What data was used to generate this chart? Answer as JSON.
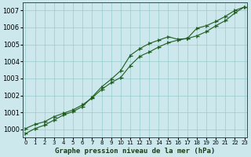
{
  "title": "Graphe pression niveau de la mer (hPa)",
  "background_color": "#cce8ec",
  "plot_bg_color": "#cce8ec",
  "grid_color": "#99cccc",
  "line_color": "#1e5c1e",
  "xlim": [
    -0.3,
    23.3
  ],
  "ylim": [
    999.55,
    1007.45
  ],
  "yticks": [
    1000,
    1001,
    1002,
    1003,
    1004,
    1005,
    1006,
    1007
  ],
  "xticks": [
    0,
    1,
    2,
    3,
    4,
    5,
    6,
    7,
    8,
    9,
    10,
    11,
    12,
    13,
    14,
    15,
    16,
    17,
    18,
    19,
    20,
    21,
    22,
    23
  ],
  "line1_x": [
    0,
    1,
    2,
    3,
    4,
    5,
    6,
    7,
    8,
    9,
    10,
    11,
    12,
    13,
    14,
    15,
    16,
    17,
    18,
    19,
    20,
    21,
    22,
    23
  ],
  "line1_y": [
    1000.05,
    1000.3,
    1000.45,
    1000.75,
    1000.95,
    1001.15,
    1001.45,
    1001.85,
    1002.35,
    1002.75,
    1003.05,
    1003.75,
    1004.3,
    1004.55,
    1004.85,
    1005.1,
    1005.25,
    1005.35,
    1005.95,
    1006.1,
    1006.35,
    1006.65,
    1007.0,
    1007.2
  ],
  "line2_x": [
    0,
    1,
    2,
    3,
    4,
    5,
    6,
    7,
    8,
    9,
    10,
    11,
    12,
    13,
    14,
    15,
    16,
    17,
    18,
    19,
    20,
    21,
    22,
    23
  ],
  "line2_y": [
    999.75,
    1000.05,
    1000.25,
    1000.55,
    1000.85,
    1001.05,
    1001.35,
    1001.9,
    1002.5,
    1002.95,
    1003.45,
    1004.35,
    1004.75,
    1005.05,
    1005.25,
    1005.45,
    1005.3,
    1005.35,
    1005.5,
    1005.75,
    1006.1,
    1006.4,
    1006.85,
    1007.2
  ]
}
